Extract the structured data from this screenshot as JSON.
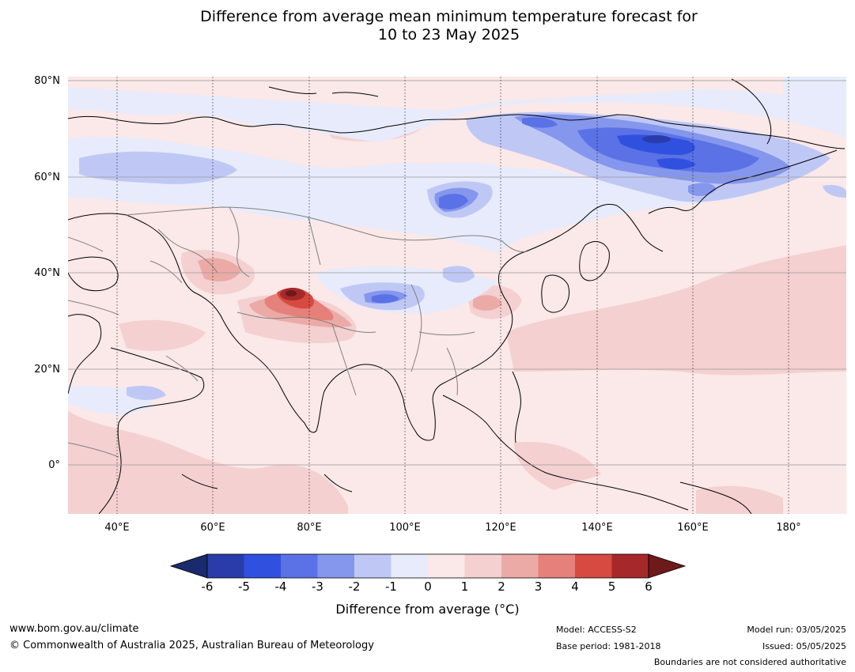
{
  "title": {
    "line1": "Difference from average mean minimum temperature forecast for",
    "line2": "10 to 23 May 2025"
  },
  "map": {
    "lon_range": [
      30,
      190
    ],
    "lat_range": [
      -10,
      81
    ],
    "lat_ticks": [
      "80°N",
      "60°N",
      "40°N",
      "20°N",
      "0°"
    ],
    "lon_ticks": [
      "40°E",
      "60°E",
      "80°E",
      "100°E",
      "120°E",
      "140°E",
      "160°E",
      "180°"
    ]
  },
  "colorbar": {
    "labels": [
      "-6",
      "-5",
      "-4",
      "-3",
      "-2",
      "-1",
      "0",
      "1",
      "2",
      "3",
      "4",
      "5",
      "6"
    ],
    "colors": [
      "#1a2a6c",
      "#2a3caa",
      "#3050df",
      "#5a72e6",
      "#8596ed",
      "#bfc8f5",
      "#e8ebfb",
      "#fbe8e8",
      "#f4d0d0",
      "#ecaaa6",
      "#e5807a",
      "#d64a42",
      "#a6282a",
      "#6e1a1a"
    ],
    "title": "Difference from average (°C)"
  },
  "footer": {
    "website": "www.bom.gov.au/climate",
    "copyright": "© Commonwealth of Australia 2025, Australian Bureau of Meteorology",
    "model": "Model: ACCESS-S2",
    "base_period": "Base period: 1981-2018",
    "model_run": "Model run: 03/05/2025",
    "issued": "Issued: 05/05/2025",
    "disclaimer": "Boundaries are not considered authoritative"
  }
}
